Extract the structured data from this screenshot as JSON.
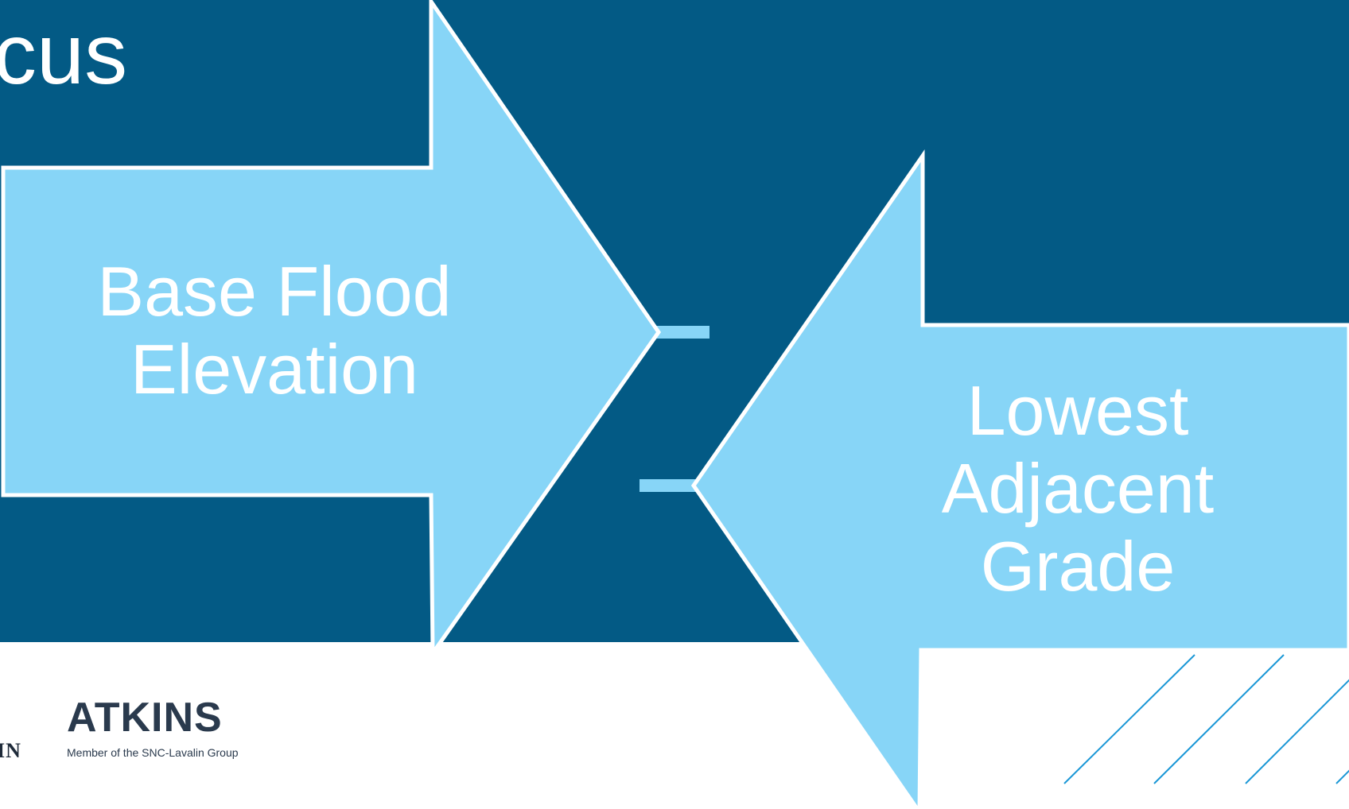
{
  "slide": {
    "title_fragment": "cus",
    "arrow_left": {
      "label": "Base Flood Elevation",
      "line1": "Base Flood",
      "line2": "Elevation"
    },
    "arrow_right": {
      "label": "Lowest Adjacent Grade",
      "line1": "Lowest",
      "line2": "Adjacent",
      "line3": "Grade"
    }
  },
  "footer": {
    "left_logo_fragment": "IN",
    "atkins_wordmark": "ATKINS",
    "atkins_tagline": "Member of the SNC-Lavalin Group"
  },
  "colors": {
    "background_panel": "#035a85",
    "arrow_fill": "#87d5f7",
    "arrow_outline": "#ffffff",
    "hatch": "#1a97d6",
    "logo": "#2a3a4d"
  }
}
